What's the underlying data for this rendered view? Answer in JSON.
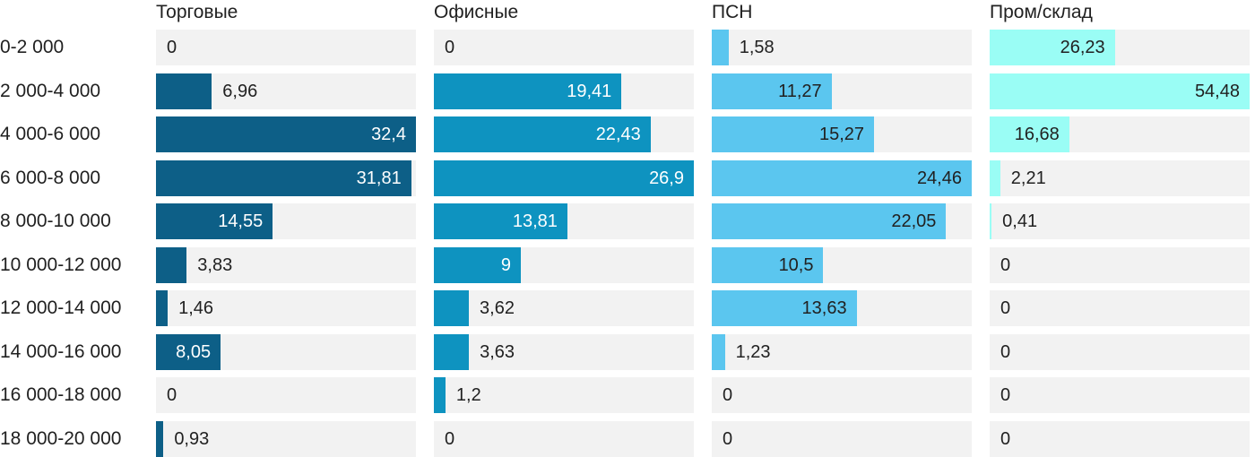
{
  "chart_data": {
    "type": "bar",
    "orientation": "horizontal",
    "title": "",
    "xlabel": "",
    "ylabel": "",
    "track_color": "#f2f2f2",
    "text_color": "#212121",
    "layout": {
      "legend": "none",
      "grid": false,
      "column_scaling": "each column scaled to its own max value",
      "inside_label_threshold_fraction": 0.24
    },
    "categories": [
      "0-2 000",
      "2 000-4 000",
      "4 000-6 000",
      "6 000-8 000",
      "8 000-10 000",
      "10 000-12 000",
      "12 000-14 000",
      "14 000-16 000",
      "16 000-18 000",
      "18 000-20 000"
    ],
    "series": [
      {
        "name": "Торговые",
        "color": "#0d5f87",
        "inside_label_color": "#ffffff",
        "axis_max": 32.4,
        "values": [
          0,
          6.96,
          32.4,
          31.81,
          14.55,
          3.83,
          1.46,
          8.05,
          0,
          0.93
        ],
        "labels": [
          "0",
          "6,96",
          "32,4",
          "31,81",
          "14,55",
          "3,83",
          "1,46",
          "8,05",
          "0",
          "0,93"
        ]
      },
      {
        "name": "Офисные",
        "color": "#0e93c0",
        "inside_label_color": "#ffffff",
        "axis_max": 26.9,
        "values": [
          0,
          19.41,
          22.43,
          26.9,
          13.81,
          9,
          3.62,
          3.63,
          1.2,
          0
        ],
        "labels": [
          "0",
          "19,41",
          "22,43",
          "26,9",
          "13,81",
          "9",
          "3,62",
          "3,63",
          "1,2",
          "0"
        ]
      },
      {
        "name": "ПСН",
        "color": "#5bc6ef",
        "inside_label_color": "#212121",
        "axis_max": 24.46,
        "values": [
          1.58,
          11.27,
          15.27,
          24.46,
          22.05,
          10.5,
          13.63,
          1.23,
          0,
          0
        ],
        "labels": [
          "1,58",
          "11,27",
          "15,27",
          "24,46",
          "22,05",
          "10,5",
          "13,63",
          "1,23",
          "0",
          "0"
        ]
      },
      {
        "name": "Пром/склад",
        "color": "#9afdf5",
        "inside_label_color": "#212121",
        "axis_max": 54.48,
        "values": [
          26.23,
          54.48,
          16.68,
          2.21,
          0.41,
          0,
          0,
          0,
          0,
          0
        ],
        "labels": [
          "26,23",
          "54,48",
          "16,68",
          "2,21",
          "0,41",
          "0",
          "0",
          "0",
          "0",
          "0"
        ]
      }
    ]
  }
}
